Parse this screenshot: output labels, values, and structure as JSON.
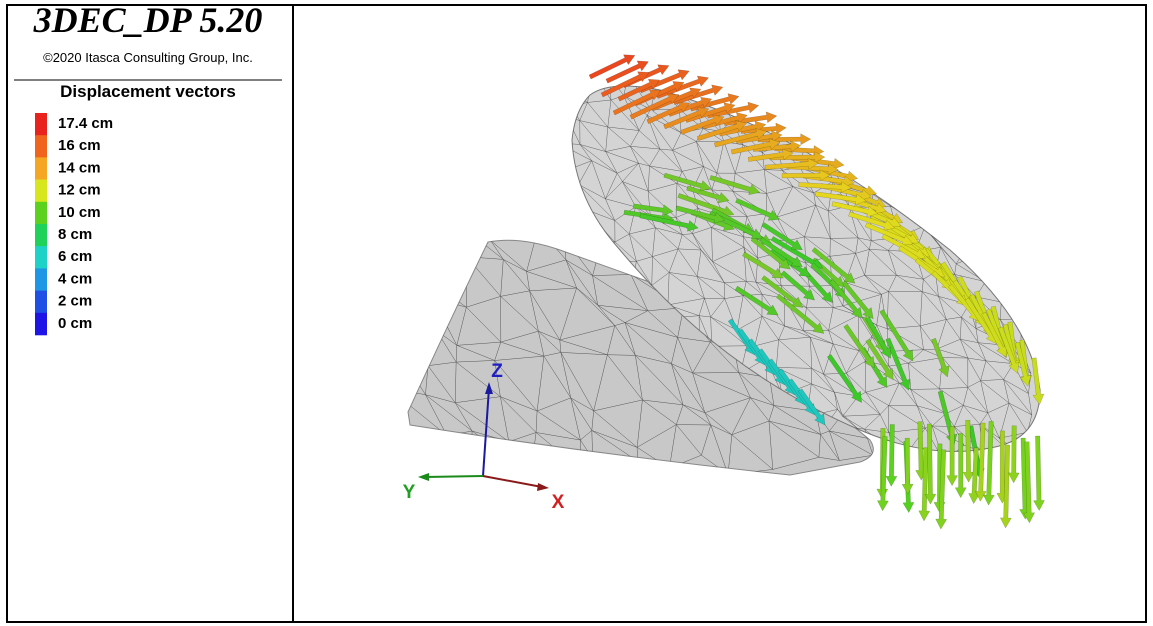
{
  "header": {
    "title": "3DEC_DP 5.20",
    "copyright": "©2020 Itasca Consulting Group, Inc."
  },
  "legend": {
    "title": "Displacement vectors",
    "items": [
      {
        "label": "17.4 cm",
        "color": "#e8221c"
      },
      {
        "label": "16 cm",
        "color": "#f0641e"
      },
      {
        "label": "14 cm",
        "color": "#f5a623"
      },
      {
        "label": "12 cm",
        "color": "#d8e61e"
      },
      {
        "label": "10 cm",
        "color": "#5cd21e"
      },
      {
        "label": "8 cm",
        "color": "#1ed25a"
      },
      {
        "label": "6 cm",
        "color": "#1ed2c8"
      },
      {
        "label": "4 cm",
        "color": "#1e96e6"
      },
      {
        "label": "2 cm",
        "color": "#1e50e6"
      },
      {
        "label": "0 cm",
        "color": "#1e14e6"
      }
    ]
  },
  "axes": {
    "x": "X",
    "y": "Y",
    "z": "Z"
  }
}
